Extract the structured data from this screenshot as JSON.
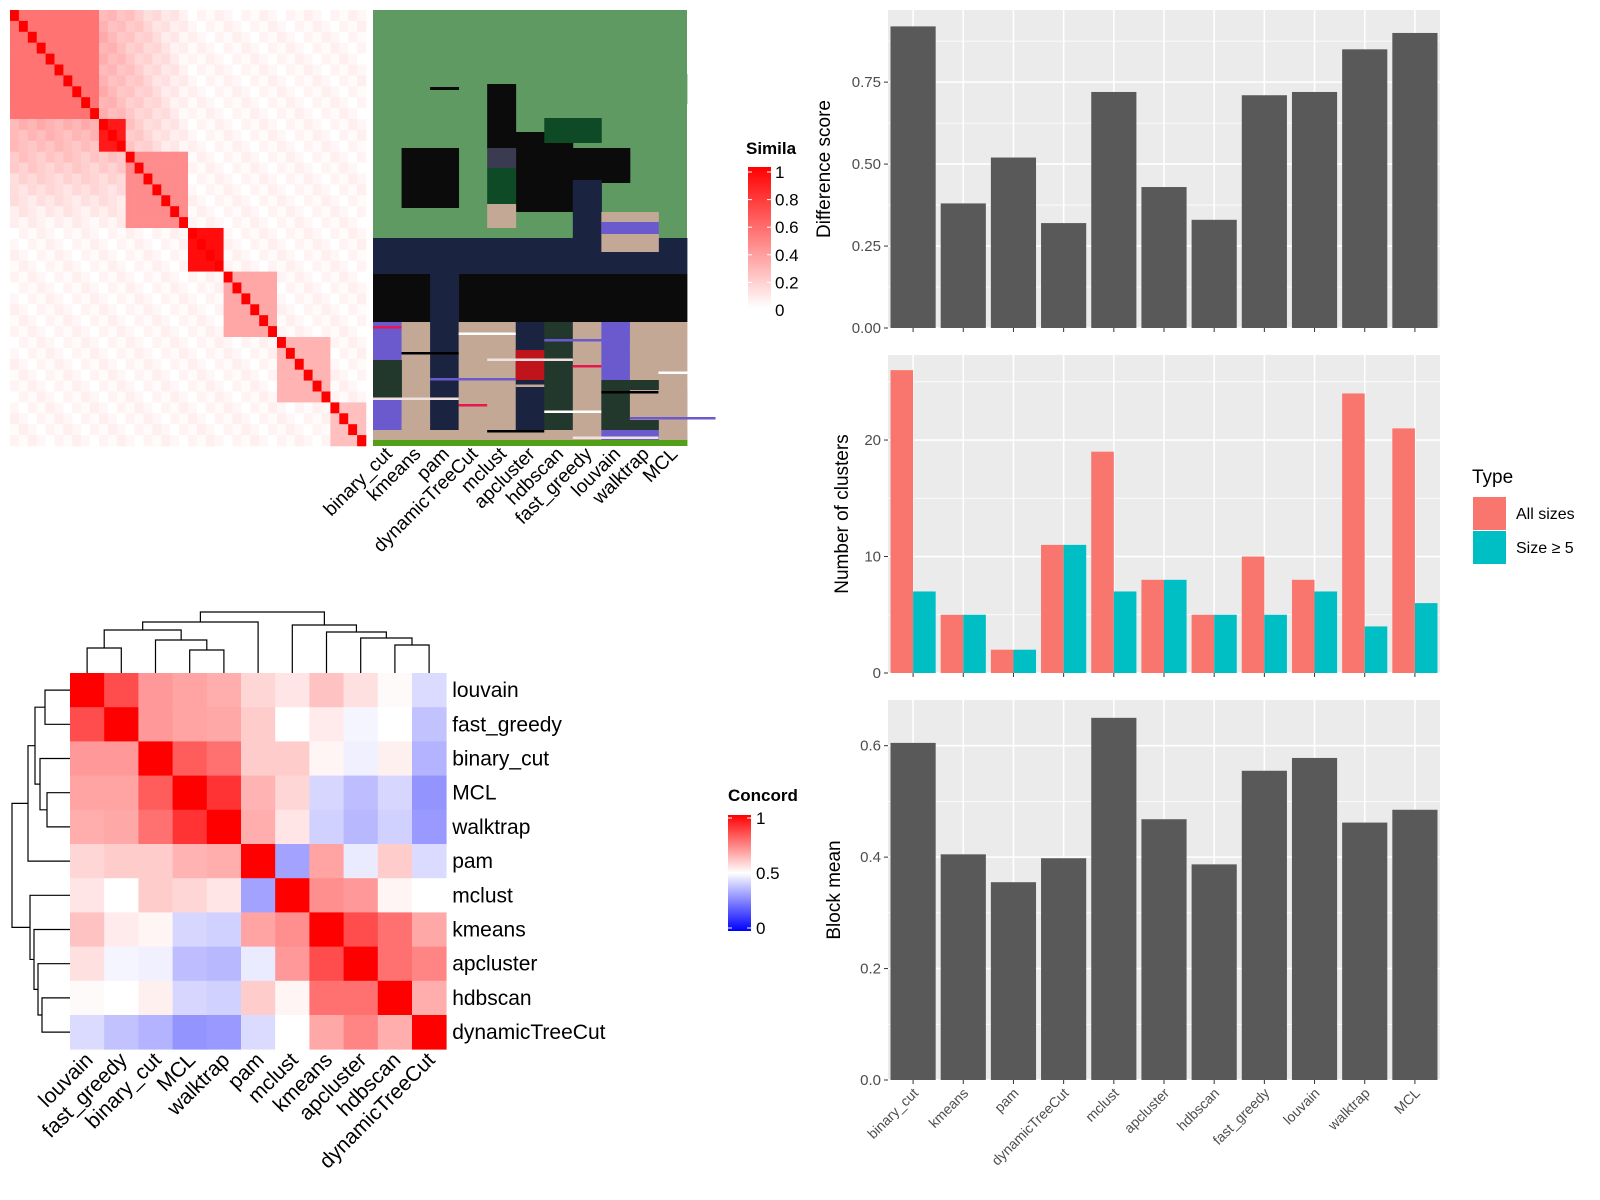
{
  "similarity_panel": {
    "legend_title": "Simila",
    "legend_ticks": [
      "1",
      "0.8",
      "0.6",
      "0.4",
      "0.2",
      "0"
    ],
    "methods": [
      "binary_cut",
      "kmeans",
      "pam",
      "dynamicTreeCut",
      "mclust",
      "apcluster",
      "hdbscan",
      "fast_greedy",
      "louvain",
      "walktrap",
      "MCL"
    ]
  },
  "concordance_panel": {
    "legend_title": "Concord",
    "legend_ticks": [
      "1",
      "0.5",
      "0"
    ]
  },
  "colors": {
    "heat_high": "#ff0000",
    "heat_mid": "#ffffff",
    "heat_low": "#0000ff",
    "bar_dark": "#595959",
    "panel_bg": "#ebebeb",
    "all_sizes": "#f8766d",
    "size_ge_5": "#00bfc4"
  },
  "chart_data": [
    {
      "type": "heatmap",
      "title": "",
      "legend_title": "Concord",
      "rows": [
        "louvain",
        "fast_greedy",
        "binary_cut",
        "MCL",
        "walktrap",
        "pam",
        "mclust",
        "kmeans",
        "apcluster",
        "hdbscan",
        "dynamicTreeCut"
      ],
      "cols": [
        "louvain",
        "fast_greedy",
        "binary_cut",
        "MCL",
        "walktrap",
        "pam",
        "mclust",
        "kmeans",
        "apcluster",
        "hdbscan",
        "dynamicTreeCut"
      ],
      "values": [
        [
          1.0,
          0.85,
          0.7,
          0.68,
          0.66,
          0.58,
          0.55,
          0.62,
          0.56,
          0.51,
          0.43
        ],
        [
          0.85,
          1.0,
          0.7,
          0.68,
          0.67,
          0.6,
          0.5,
          0.54,
          0.48,
          0.5,
          0.38
        ],
        [
          0.7,
          0.7,
          1.0,
          0.82,
          0.78,
          0.6,
          0.6,
          0.52,
          0.47,
          0.53,
          0.35
        ],
        [
          0.68,
          0.68,
          0.82,
          1.0,
          0.9,
          0.65,
          0.58,
          0.42,
          0.37,
          0.42,
          0.29
        ],
        [
          0.66,
          0.67,
          0.78,
          0.9,
          1.0,
          0.66,
          0.55,
          0.41,
          0.36,
          0.41,
          0.3
        ],
        [
          0.58,
          0.6,
          0.6,
          0.65,
          0.66,
          1.0,
          0.32,
          0.68,
          0.46,
          0.6,
          0.43
        ],
        [
          0.55,
          0.5,
          0.6,
          0.58,
          0.55,
          0.32,
          1.0,
          0.72,
          0.7,
          0.52,
          0.5
        ],
        [
          0.62,
          0.54,
          0.52,
          0.42,
          0.41,
          0.68,
          0.72,
          1.0,
          0.85,
          0.78,
          0.67
        ],
        [
          0.56,
          0.48,
          0.47,
          0.37,
          0.36,
          0.46,
          0.7,
          0.85,
          1.0,
          0.78,
          0.74
        ],
        [
          0.51,
          0.5,
          0.53,
          0.42,
          0.41,
          0.6,
          0.52,
          0.78,
          0.78,
          1.0,
          0.66
        ],
        [
          0.43,
          0.38,
          0.35,
          0.29,
          0.3,
          0.43,
          0.5,
          0.67,
          0.74,
          0.66,
          1.0
        ]
      ],
      "scale": [
        0,
        1
      ]
    },
    {
      "type": "bar",
      "ylabel": "Difference score",
      "xlabel": "",
      "categories": [
        "binary_cut",
        "kmeans",
        "pam",
        "dynamicTreeCut",
        "mclust",
        "apcluster",
        "hdbscan",
        "fast_greedy",
        "louvain",
        "walktrap",
        "MCL"
      ],
      "values": [
        0.92,
        0.38,
        0.52,
        0.32,
        0.72,
        0.43,
        0.33,
        0.71,
        0.72,
        0.85,
        0.9
      ],
      "ylim": [
        0,
        0.97
      ],
      "yticks": [
        "0.00",
        "0.25",
        "0.50",
        "0.75"
      ],
      "grid": true
    },
    {
      "type": "bar",
      "ylabel": "Number of clusters",
      "xlabel": "",
      "categories": [
        "binary_cut",
        "kmeans",
        "pam",
        "dynamicTreeCut",
        "mclust",
        "apcluster",
        "hdbscan",
        "fast_greedy",
        "louvain",
        "walktrap",
        "MCL"
      ],
      "legend_title": "Type",
      "legend_position": "right",
      "series": [
        {
          "name": "All sizes",
          "values": [
            26,
            5,
            2,
            11,
            19,
            8,
            5,
            10,
            8,
            24,
            21
          ]
        },
        {
          "name": "Size ≥ 5",
          "values": [
            7,
            5,
            2,
            11,
            7,
            8,
            5,
            5,
            7,
            4,
            6
          ]
        }
      ],
      "ylim": [
        0,
        27.3
      ],
      "yticks": [
        "0",
        "10",
        "20"
      ],
      "grid": true
    },
    {
      "type": "bar",
      "ylabel": "Block mean",
      "xlabel": "",
      "categories": [
        "binary_cut",
        "kmeans",
        "pam",
        "dynamicTreeCut",
        "mclust",
        "apcluster",
        "hdbscan",
        "fast_greedy",
        "louvain",
        "walktrap",
        "MCL"
      ],
      "values": [
        0.605,
        0.405,
        0.355,
        0.398,
        0.65,
        0.468,
        0.387,
        0.555,
        0.578,
        0.462,
        0.485
      ],
      "ylim": [
        0,
        0.682
      ],
      "yticks": [
        "0.0",
        "0.2",
        "0.4",
        "0.6"
      ],
      "grid": true
    }
  ]
}
